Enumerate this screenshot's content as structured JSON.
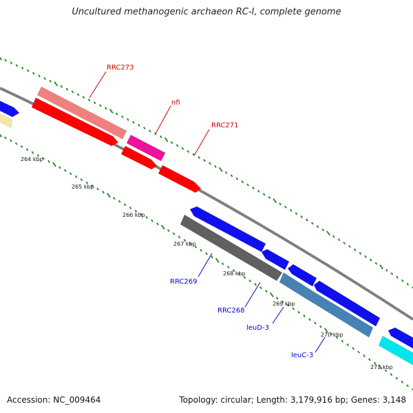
{
  "title": "Uncultured methanogenic archaeon RC-I, complete genome",
  "accession": "Accession: NC_009464",
  "summary": "Topology: circular; Length: 3,179,916 bp; Genes: 3,148",
  "colors": {
    "forward_label": "#cc0000",
    "reverse_label": "#0000cc",
    "backbone": "#7f7f7f",
    "tick_minor": "#2e8b2e"
  },
  "scale_labels": [
    "264 kbp",
    "265 kbp",
    "266 kbp",
    "267 kbp",
    "268 kbp",
    "269 kbp",
    "270 kbp",
    "271 kbp"
  ],
  "gene_labels": [
    {
      "text": "RRC273",
      "color": "#cc0000"
    },
    {
      "text": "nfi",
      "color": "#cc0000"
    },
    {
      "text": "RRC271",
      "color": "#cc0000"
    },
    {
      "text": "RRC269",
      "color": "#0000cc"
    },
    {
      "text": "RRC268",
      "color": "#0000cc"
    },
    {
      "text": "leuD-3",
      "color": "#0000cc"
    },
    {
      "text": "leuC-3",
      "color": "#0000cc"
    }
  ],
  "features": [
    {
      "color": "#1010ee"
    },
    {
      "color": "#f2e6a8"
    },
    {
      "color": "#f08080"
    },
    {
      "color": "#ff0000"
    },
    {
      "color": "#ee1199"
    },
    {
      "color": "#ff0000"
    },
    {
      "color": "#ff0000"
    },
    {
      "color": "#1010ee"
    },
    {
      "color": "#606060"
    },
    {
      "color": "#1010ee"
    },
    {
      "color": "#1010ee"
    },
    {
      "color": "#4682b4"
    },
    {
      "color": "#1010ee"
    },
    {
      "color": "#4682b4"
    },
    {
      "color": "#1010ee"
    },
    {
      "color": "#00e5ee"
    }
  ]
}
